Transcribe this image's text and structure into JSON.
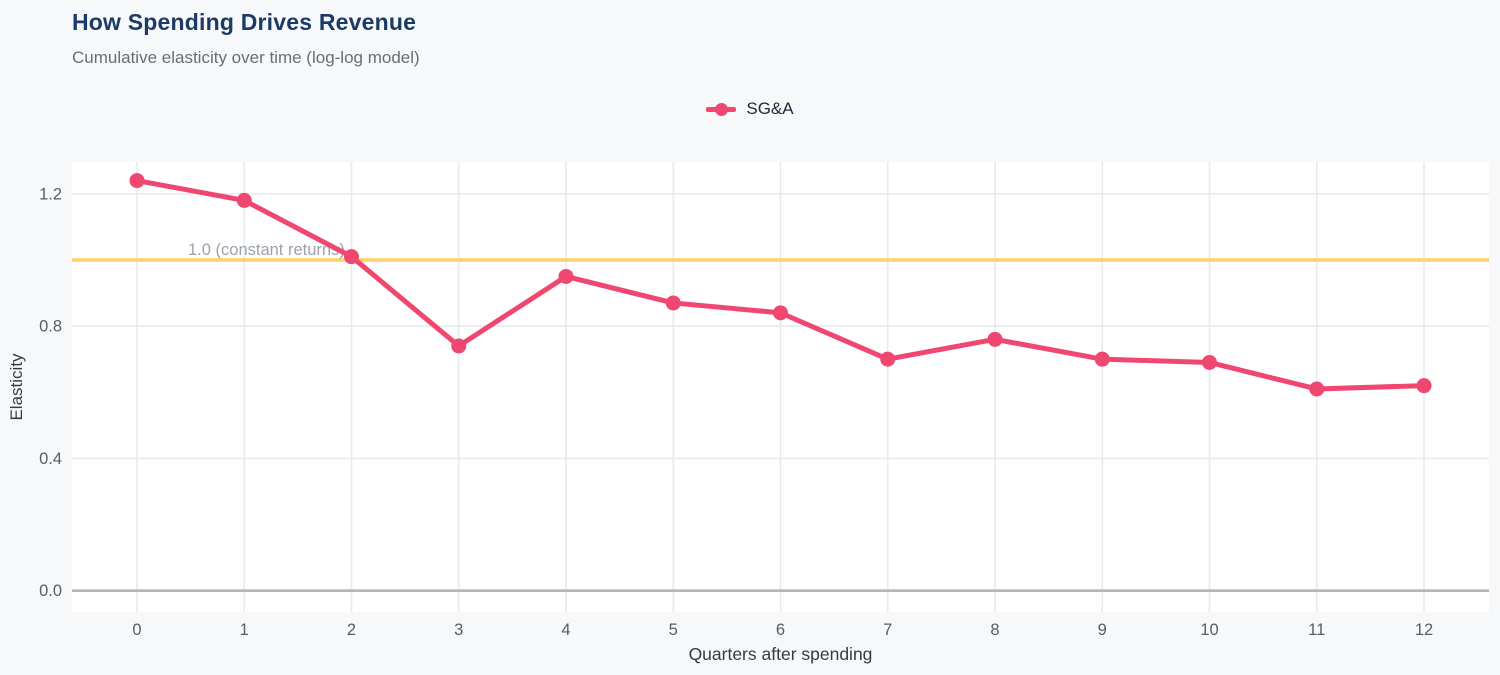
{
  "header": {
    "title": "How Spending Drives Revenue",
    "subtitle": "Cumulative elasticity over time (log-log model)"
  },
  "chart_data": {
    "type": "line",
    "title": "How Spending Drives Revenue",
    "subtitle": "Cumulative elasticity over time (log-log model)",
    "xlabel": "Quarters after spending",
    "ylabel": "Elasticity",
    "x": [
      0,
      1,
      2,
      3,
      4,
      5,
      6,
      7,
      8,
      9,
      10,
      11,
      12
    ],
    "x_tick_labels": [
      "0",
      "1",
      "2",
      "3",
      "4",
      "5",
      "6",
      "7",
      "8",
      "9",
      "10",
      "11",
      "12"
    ],
    "series": [
      {
        "name": "SG&A",
        "color": "#EF476F",
        "values": [
          1.24,
          1.18,
          1.01,
          0.74,
          0.95,
          0.87,
          0.84,
          0.7,
          0.76,
          0.7,
          0.69,
          0.61,
          0.62
        ]
      }
    ],
    "reference_line": {
      "value": 1.0,
      "label": "1.0 (constant returns)",
      "color": "#FFD166"
    },
    "y_ticks": [
      0.0,
      0.4,
      0.8,
      1.2
    ],
    "y_tick_labels": [
      "0.0",
      "0.4",
      "0.8",
      "1.2"
    ],
    "ylim": [
      -0.06,
      1.3
    ],
    "xlim": [
      -0.61,
      12.61
    ],
    "grid": true,
    "legend_position": "top-center",
    "colors": {
      "series": "#EF476F",
      "reference": "#FFD166",
      "plot_background": "#ffffff",
      "page_background": "#f6f8fa",
      "gridline": "#e8eaed",
      "zero_line": "#b2b5ba",
      "tick_label": "#585d64",
      "axis_title": "#373c42",
      "annotation": "#9ca2a9",
      "title": "#1b3a66",
      "subtitle": "#696e76"
    }
  }
}
